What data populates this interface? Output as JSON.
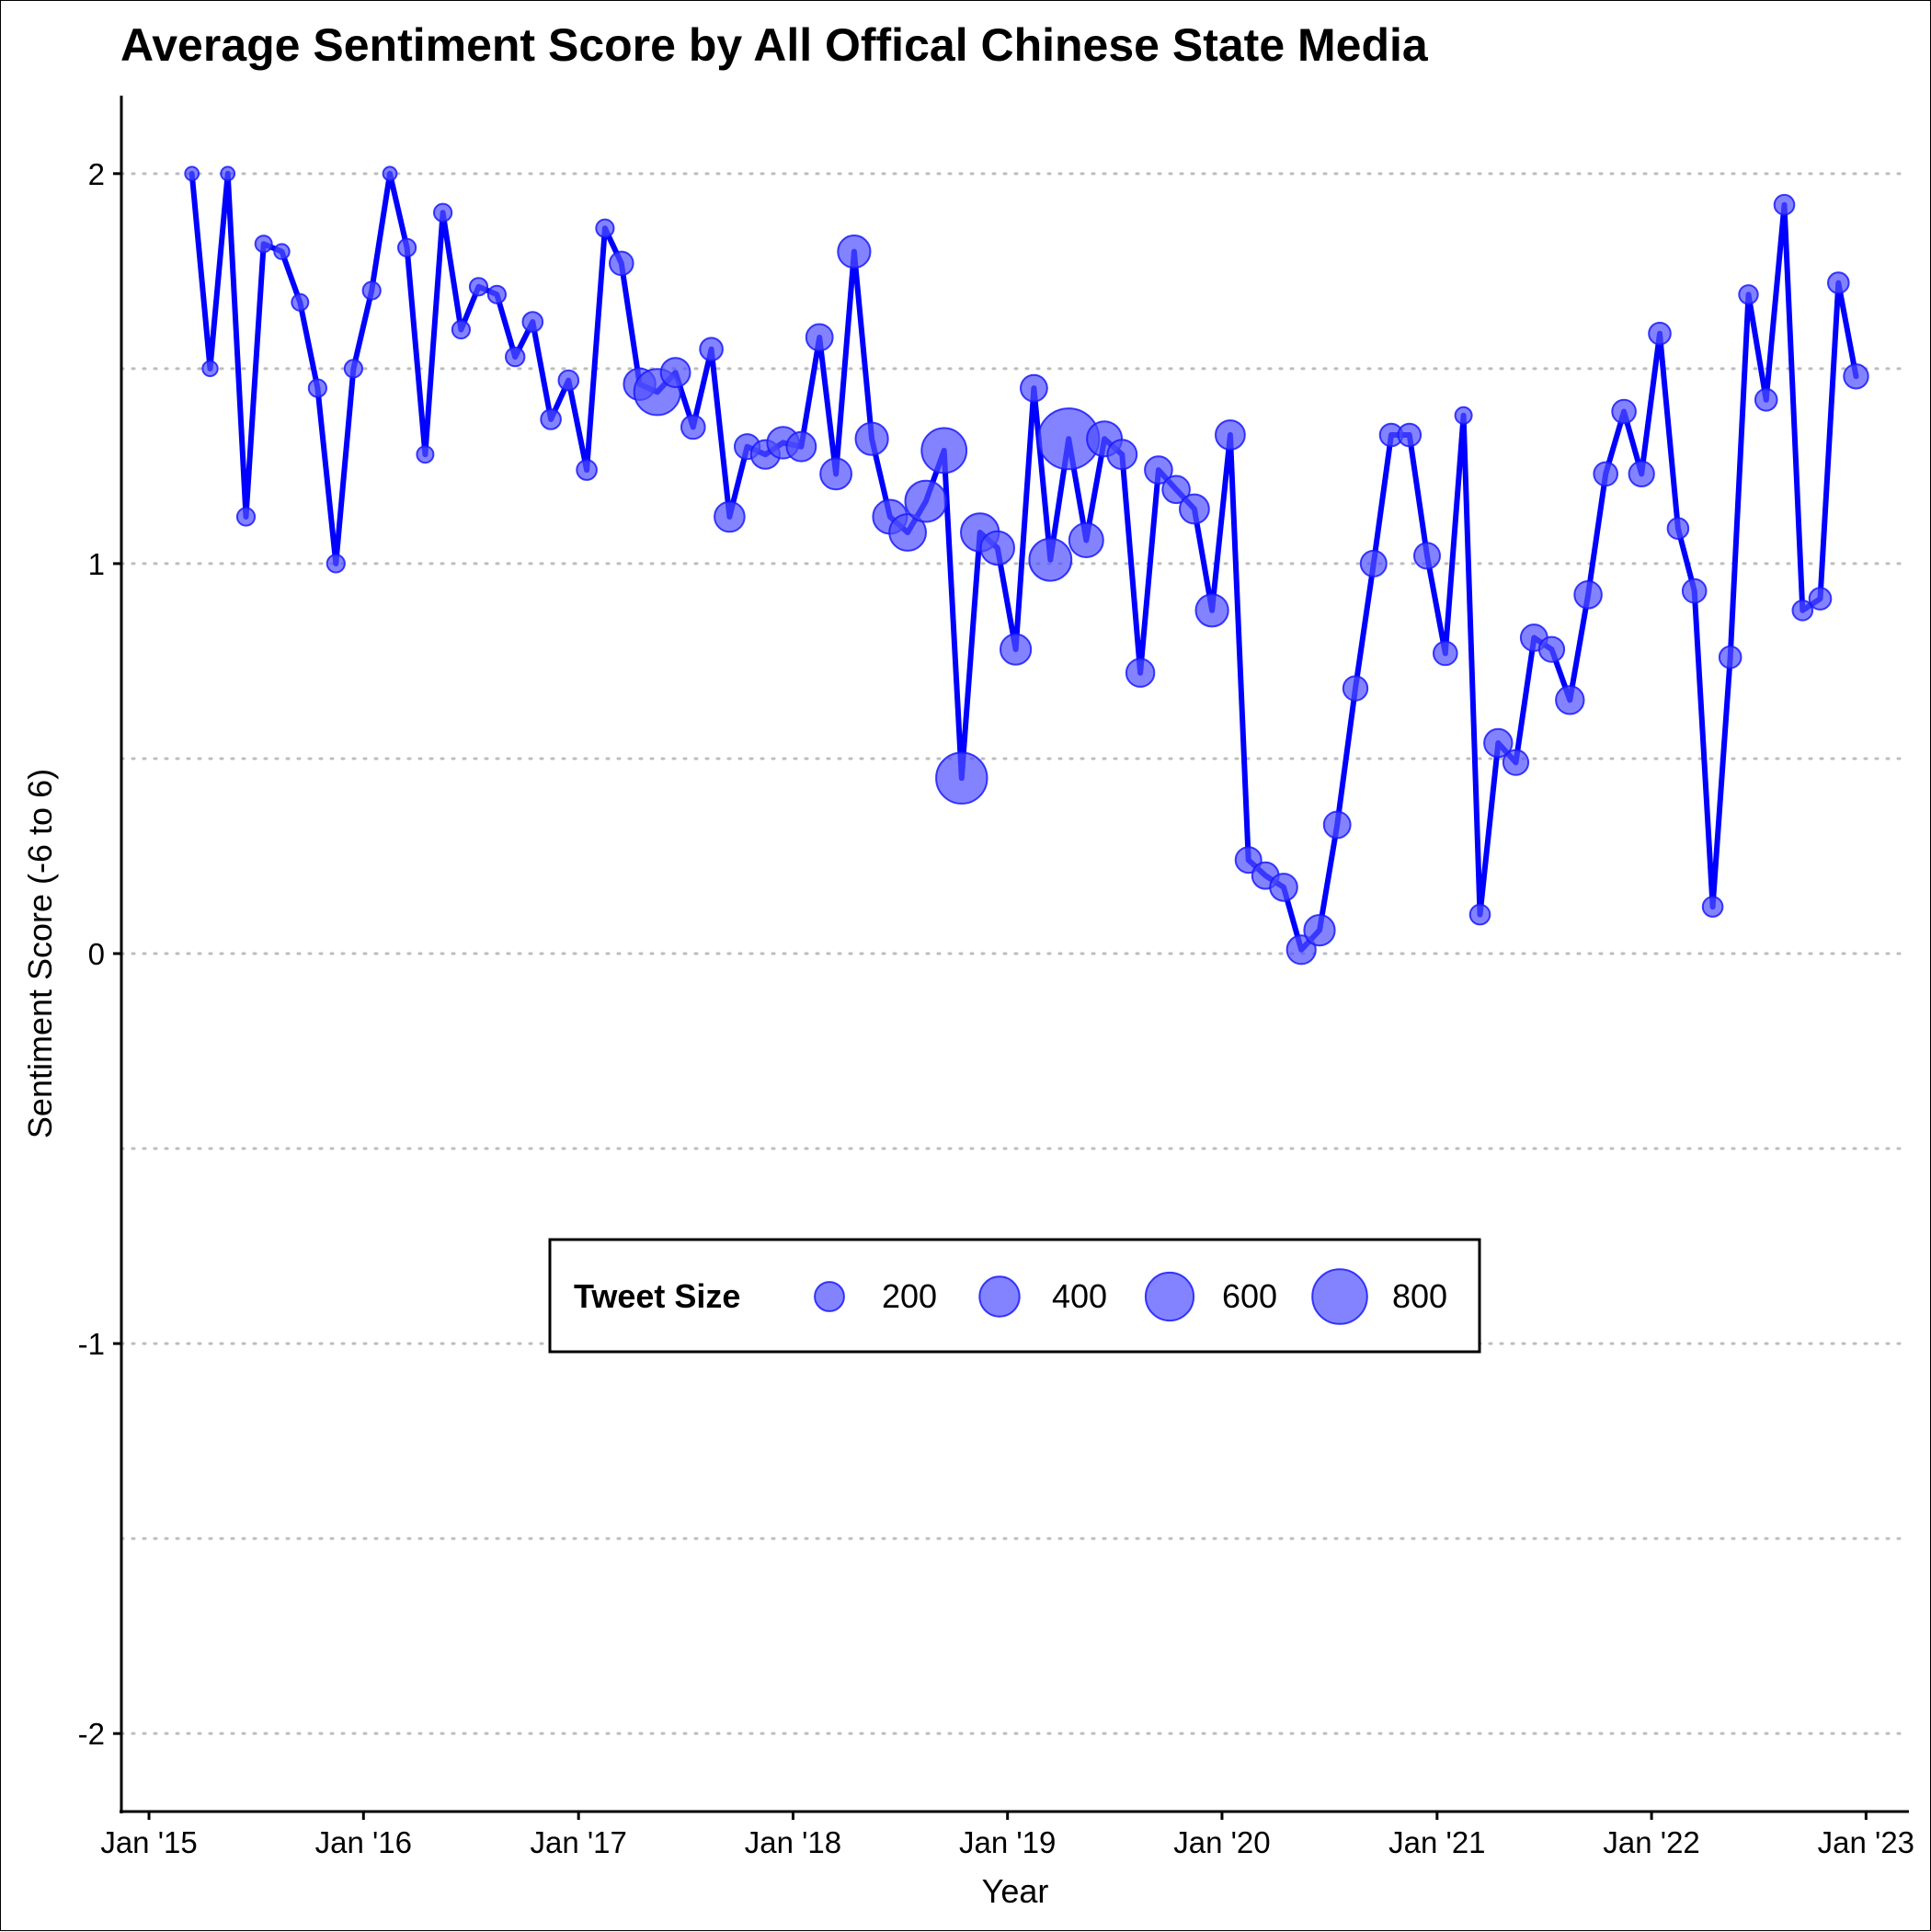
{
  "chart_data": {
    "type": "line",
    "title": "Average Sentiment Score by All Offical Chinese State Media",
    "xlabel": "Year",
    "ylabel": "Sentiment Score (-6 to 6)",
    "ylim": [
      -2.2,
      2.2
    ],
    "y_ticks": [
      2,
      1,
      0,
      -1,
      -2
    ],
    "y_tick_labels": [
      "2",
      "1",
      "0",
      "-1",
      "-2"
    ],
    "y_gridlines": [
      2,
      1.5,
      1,
      0.5,
      0,
      -0.5,
      -1,
      -1.5,
      -2
    ],
    "x_ticks": [
      "2015-01",
      "2016-01",
      "2017-01",
      "2018-01",
      "2019-01",
      "2020-01",
      "2021-01",
      "2022-01",
      "2023-01"
    ],
    "x_tick_labels": [
      "Jan '15",
      "Jan '16",
      "Jan '17",
      "Jan '18",
      "Jan '19",
      "Jan '20",
      "Jan '21",
      "Jan '22",
      "Jan '23"
    ],
    "xlim": [
      "2014-11-15",
      "2023-03-15"
    ],
    "grid": "horizontal dotted",
    "line_color": "#0000ff",
    "point_color": "#4f4fff",
    "legend": {
      "title": "Tweet Size",
      "placement": "inside-center",
      "values": [
        200,
        400,
        600,
        800
      ],
      "labels": [
        "200",
        "400",
        "600",
        "800"
      ]
    },
    "series": [
      {
        "x": [
          "2015-03",
          "2015-04",
          "2015-05",
          "2015-06",
          "2015-07",
          "2015-08",
          "2015-09",
          "2015-10",
          "2015-11",
          "2015-12",
          "2016-01",
          "2016-02",
          "2016-03",
          "2016-04",
          "2016-05",
          "2016-06",
          "2016-07",
          "2016-08",
          "2016-09",
          "2016-10",
          "2016-11",
          "2016-12",
          "2017-01",
          "2017-02",
          "2017-03",
          "2017-04",
          "2017-05",
          "2017-06",
          "2017-07",
          "2017-08",
          "2017-09",
          "2017-10",
          "2017-11",
          "2017-12",
          "2018-01",
          "2018-02",
          "2018-03",
          "2018-04",
          "2018-05",
          "2018-06",
          "2018-07",
          "2018-08",
          "2018-09",
          "2018-10",
          "2018-11",
          "2018-12",
          "2019-01",
          "2019-02",
          "2019-03",
          "2019-04",
          "2019-05",
          "2019-06",
          "2019-07",
          "2019-08",
          "2019-09",
          "2019-10",
          "2019-11",
          "2019-12",
          "2020-01",
          "2020-02",
          "2020-03",
          "2020-04",
          "2020-05",
          "2020-06",
          "2020-07",
          "2020-08",
          "2020-09",
          "2020-10",
          "2020-11",
          "2020-12",
          "2021-01",
          "2021-02",
          "2021-03",
          "2021-04",
          "2021-05",
          "2021-06",
          "2021-07",
          "2021-08",
          "2021-09",
          "2021-10",
          "2021-11",
          "2021-12",
          "2022-01",
          "2022-02",
          "2022-03",
          "2022-04",
          "2022-05",
          "2022-06",
          "2022-07",
          "2022-08",
          "2022-09",
          "2022-10",
          "2022-11",
          "2022-12"
        ],
        "y": [
          2.0,
          1.5,
          2.0,
          1.12,
          1.82,
          1.8,
          1.67,
          1.45,
          1.0,
          1.5,
          1.7,
          2.0,
          1.81,
          1.28,
          1.9,
          1.6,
          1.71,
          1.69,
          1.53,
          1.62,
          1.37,
          1.47,
          1.24,
          1.86,
          1.77,
          1.46,
          1.44,
          1.49,
          1.35,
          1.55,
          1.12,
          1.3,
          1.28,
          1.31,
          1.3,
          1.58,
          1.23,
          1.8,
          1.32,
          1.12,
          1.08,
          1.16,
          1.29,
          0.45,
          1.08,
          1.04,
          0.78,
          1.45,
          1.01,
          1.32,
          1.06,
          1.32,
          1.28,
          0.72,
          1.24,
          1.19,
          1.14,
          0.88,
          1.33,
          0.24,
          0.2,
          0.17,
          0.01,
          0.06,
          0.33,
          0.68,
          1.0,
          1.33,
          1.33,
          1.02,
          0.77,
          1.38,
          0.1,
          0.54,
          0.49,
          0.81,
          0.78,
          0.65,
          0.92,
          1.23,
          1.39,
          1.23,
          1.59,
          1.09,
          0.93,
          0.12,
          0.76,
          1.69,
          1.42,
          1.92,
          0.88,
          0.91,
          1.72,
          1.48
        ],
        "tweet_size": [
          30,
          40,
          30,
          60,
          50,
          40,
          50,
          60,
          60,
          60,
          60,
          30,
          60,
          50,
          60,
          60,
          60,
          60,
          70,
          80,
          80,
          80,
          80,
          60,
          120,
          240,
          550,
          200,
          120,
          110,
          210,
          140,
          190,
          240,
          200,
          160,
          230,
          250,
          250,
          280,
          330,
          430,
          520,
          680,
          360,
          270,
          220,
          160,
          450,
          1000,
          280,
          300,
          200,
          180,
          170,
          170,
          200,
          250,
          200,
          150,
          160,
          170,
          190,
          220,
          160,
          130,
          150,
          110,
          110,
          150,
          120,
          50,
          80,
          180,
          140,
          160,
          140,
          180,
          170,
          120,
          120,
          140,
          100,
          90,
          120,
          80,
          100,
          70,
          100,
          80,
          80,
          100,
          90,
          130
        ]
      }
    ]
  }
}
